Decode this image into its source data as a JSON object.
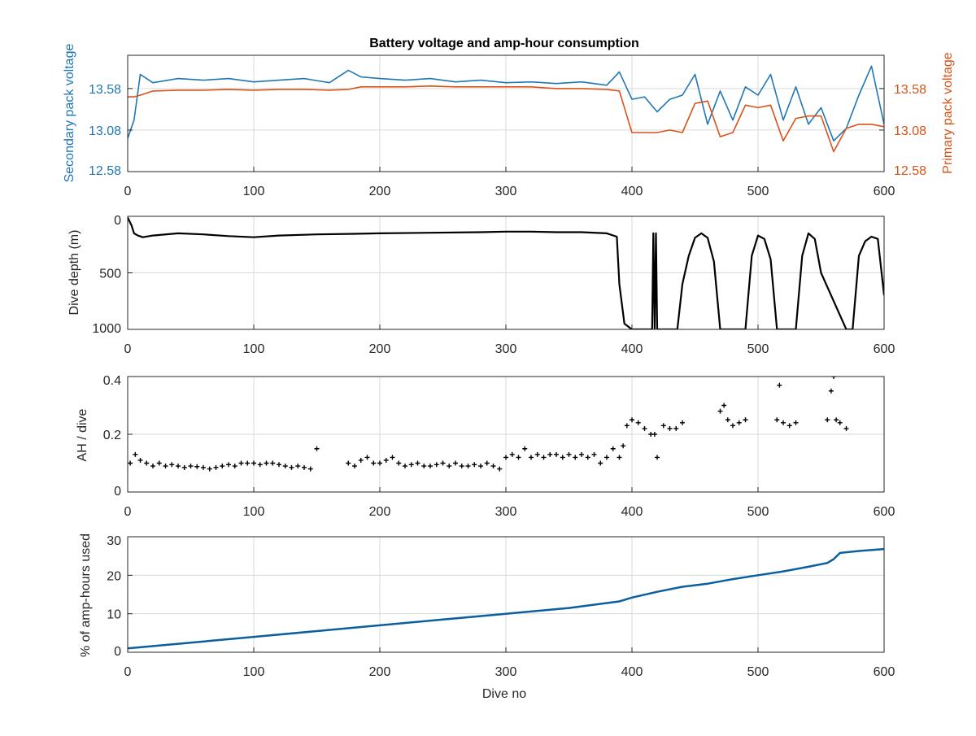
{
  "colors": {
    "secondary": "#1f77b4",
    "primary": "#d95319",
    "black": "#000000",
    "amp_hours": "#0c5f9e"
  },
  "chart_data": [
    {
      "type": "line",
      "title": "Battery voltage and amp-hour consumption",
      "xlabel": "",
      "ylabel": "Secondary pack voltage",
      "y2label": "Primary pack voltage",
      "xlim": [
        0,
        600
      ],
      "ylim": [
        12.58,
        13.98
      ],
      "grid": true,
      "xticks": [
        "0",
        "100",
        "200",
        "300",
        "400",
        "500",
        "600"
      ],
      "yticks": [
        "12.58",
        "13.08",
        "13.58"
      ],
      "y2ticks": [
        "12.58",
        "13.08",
        "13.58"
      ],
      "x": [
        0,
        5,
        10,
        20,
        40,
        60,
        80,
        100,
        120,
        140,
        160,
        175,
        185,
        200,
        220,
        240,
        260,
        280,
        300,
        320,
        340,
        360,
        380,
        390,
        400,
        410,
        420,
        430,
        440,
        450,
        460,
        470,
        480,
        490,
        500,
        510,
        520,
        530,
        540,
        550,
        560,
        570,
        580,
        590,
        600
      ],
      "series": [
        {
          "name": "",
          "values": [
            12.98,
            13.2,
            13.75,
            13.65,
            13.7,
            13.68,
            13.7,
            13.66,
            13.68,
            13.7,
            13.65,
            13.8,
            13.72,
            13.7,
            13.68,
            13.7,
            13.66,
            13.68,
            13.65,
            13.66,
            13.64,
            13.66,
            13.62,
            13.78,
            13.45,
            13.48,
            13.3,
            13.45,
            13.5,
            13.75,
            13.15,
            13.55,
            13.2,
            13.6,
            13.5,
            13.75,
            13.2,
            13.6,
            13.15,
            13.35,
            12.95,
            13.1,
            13.5,
            13.85,
            13.15
          ]
        },
        {
          "name": "",
          "values": [
            13.48,
            13.48,
            13.5,
            13.55,
            13.56,
            13.56,
            13.57,
            13.56,
            13.57,
            13.57,
            13.56,
            13.57,
            13.6,
            13.6,
            13.6,
            13.61,
            13.6,
            13.6,
            13.6,
            13.6,
            13.58,
            13.58,
            13.57,
            13.55,
            13.05,
            13.05,
            13.05,
            13.08,
            13.05,
            13.4,
            13.43,
            13.0,
            13.05,
            13.38,
            13.35,
            13.38,
            12.95,
            13.22,
            13.25,
            13.25,
            12.82,
            13.1,
            13.15,
            13.15,
            13.12
          ]
        }
      ]
    },
    {
      "type": "line",
      "title": "",
      "xlabel": "",
      "ylabel": "Dive depth (m)",
      "xlim": [
        0,
        600
      ],
      "ylim": [
        1000,
        0
      ],
      "grid": true,
      "xticks": [
        "0",
        "100",
        "200",
        "300",
        "400",
        "500",
        "600"
      ],
      "yticks": [
        "0",
        "500",
        "1000"
      ],
      "x": [
        0,
        3,
        5,
        8,
        12,
        20,
        40,
        60,
        80,
        100,
        120,
        150,
        180,
        200,
        240,
        280,
        300,
        320,
        340,
        360,
        380,
        388,
        390,
        394,
        400,
        410,
        416,
        417,
        418,
        419,
        420,
        425,
        430,
        436,
        440,
        445,
        450,
        455,
        460,
        465,
        470,
        490,
        495,
        500,
        505,
        510,
        515,
        530,
        535,
        540,
        545,
        550,
        570,
        575,
        580,
        585,
        590,
        595,
        600
      ],
      "series": [
        {
          "name": "",
          "values": [
            10,
            80,
            150,
            170,
            185,
            170,
            150,
            160,
            175,
            185,
            170,
            160,
            155,
            150,
            145,
            140,
            135,
            135,
            140,
            140,
            150,
            180,
            600,
            950,
            1000,
            1000,
            1000,
            150,
            1000,
            150,
            1000,
            1000,
            1000,
            1000,
            600,
            350,
            190,
            150,
            190,
            400,
            1000,
            1000,
            350,
            170,
            200,
            380,
            1000,
            1000,
            350,
            150,
            200,
            500,
            1000,
            1000,
            350,
            220,
            180,
            200,
            700
          ]
        }
      ]
    },
    {
      "type": "scatter",
      "title": "",
      "xlabel": "",
      "ylabel": "AH / dive",
      "xlim": [
        0,
        600
      ],
      "ylim": [
        0,
        0.4
      ],
      "grid": true,
      "xticks": [
        "0",
        "100",
        "200",
        "300",
        "400",
        "500",
        "600"
      ],
      "yticks": [
        "0",
        "0.2",
        "0.4"
      ],
      "series": [
        {
          "name": "",
          "x": [
            2,
            6,
            10,
            15,
            20,
            25,
            30,
            35,
            40,
            45,
            50,
            55,
            60,
            65,
            70,
            75,
            80,
            85,
            90,
            95,
            100,
            105,
            110,
            115,
            120,
            125,
            130,
            135,
            140,
            145,
            150,
            175,
            180,
            185,
            190,
            195,
            200,
            205,
            210,
            215,
            220,
            225,
            230,
            235,
            240,
            245,
            250,
            255,
            260,
            265,
            270,
            275,
            280,
            285,
            290,
            295,
            300,
            305,
            310,
            315,
            320,
            325,
            330,
            335,
            340,
            345,
            350,
            355,
            360,
            365,
            370,
            375,
            380,
            385,
            390,
            393,
            396,
            400,
            405,
            410,
            415,
            418,
            420,
            425,
            430,
            435,
            440,
            470,
            473,
            476,
            480,
            485,
            490,
            515,
            517,
            520,
            525,
            530,
            555,
            558,
            560,
            562,
            565,
            570
          ],
          "y": [
            0.1,
            0.13,
            0.11,
            0.1,
            0.09,
            0.1,
            0.09,
            0.095,
            0.09,
            0.085,
            0.09,
            0.088,
            0.085,
            0.08,
            0.085,
            0.09,
            0.095,
            0.09,
            0.1,
            0.1,
            0.1,
            0.095,
            0.1,
            0.1,
            0.095,
            0.09,
            0.085,
            0.09,
            0.085,
            0.08,
            0.15,
            0.1,
            0.09,
            0.11,
            0.12,
            0.1,
            0.1,
            0.11,
            0.12,
            0.1,
            0.09,
            0.095,
            0.1,
            0.09,
            0.09,
            0.095,
            0.1,
            0.09,
            0.1,
            0.09,
            0.09,
            0.095,
            0.09,
            0.1,
            0.09,
            0.08,
            0.12,
            0.13,
            0.12,
            0.15,
            0.12,
            0.13,
            0.12,
            0.13,
            0.13,
            0.12,
            0.13,
            0.12,
            0.13,
            0.12,
            0.13,
            0.1,
            0.12,
            0.15,
            0.12,
            0.16,
            0.23,
            0.25,
            0.24,
            0.22,
            0.2,
            0.2,
            0.12,
            0.23,
            0.22,
            0.22,
            0.24,
            0.28,
            0.3,
            0.25,
            0.23,
            0.24,
            0.25,
            0.25,
            0.37,
            0.24,
            0.23,
            0.24,
            0.25,
            0.35,
            0.4,
            0.25,
            0.24,
            0.22
          ]
        }
      ]
    },
    {
      "type": "line",
      "title": "",
      "xlabel": "Dive no",
      "ylabel": "% of amp-hours used",
      "xlim": [
        0,
        600
      ],
      "ylim": [
        0,
        30
      ],
      "grid": true,
      "xticks": [
        "0",
        "100",
        "200",
        "300",
        "400",
        "500",
        "600"
      ],
      "yticks": [
        "0",
        "10",
        "20",
        "30"
      ],
      "x": [
        0,
        50,
        100,
        150,
        200,
        250,
        300,
        350,
        390,
        400,
        420,
        440,
        460,
        480,
        500,
        520,
        540,
        555,
        560,
        565,
        580,
        600
      ],
      "series": [
        {
          "name": "",
          "values": [
            1,
            2.5,
            4,
            5.5,
            7,
            8.5,
            10,
            11.5,
            13.2,
            14.2,
            15.7,
            17,
            17.8,
            19,
            20,
            21,
            22.2,
            23.2,
            24.2,
            25.8,
            26.3,
            26.8
          ]
        }
      ]
    }
  ]
}
